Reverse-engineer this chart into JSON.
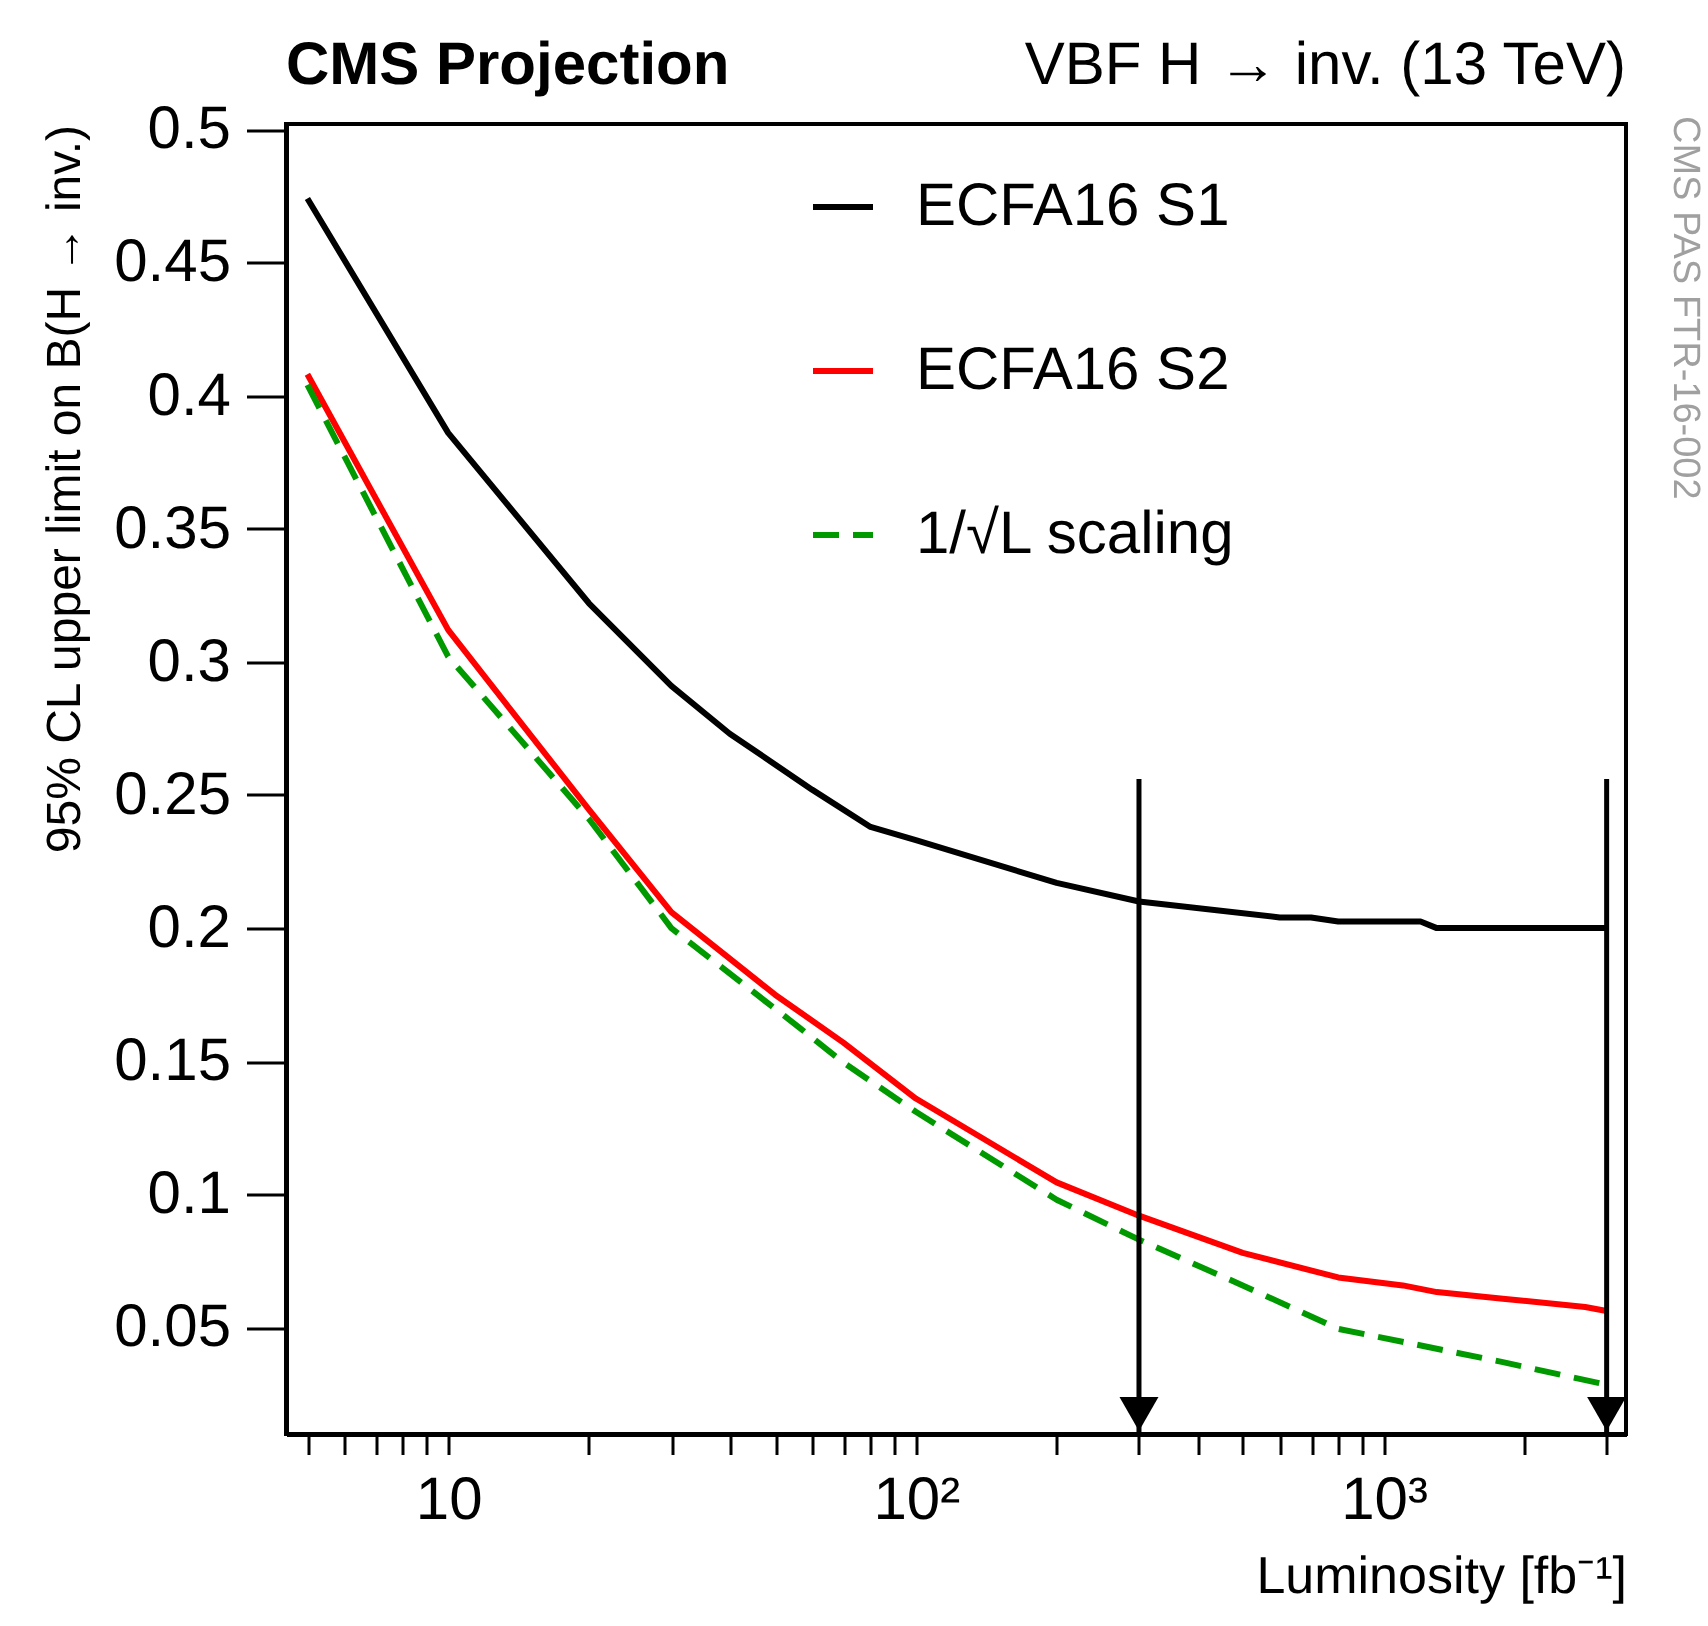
{
  "chart_data": {
    "type": "line",
    "title": "CMS Projection",
    "xlabel": "Luminosity [fb⁻¹]",
    "ylabel": "95% CL upper limit on B(H → inv.)",
    "annotations": [
      "VBF H → inv. (13 TeV)",
      "CMS PAS FTR-16-002"
    ],
    "log": "x",
    "grid": false,
    "legend": "top right",
    "xlim": [
      4.5,
      3300
    ],
    "ylim": [
      0.01,
      0.502
    ],
    "xticks": [
      {
        "value": 5,
        "label": null
      },
      {
        "value": 6,
        "label": null
      },
      {
        "value": 7,
        "label": null
      },
      {
        "value": 8,
        "label": null
      },
      {
        "value": 9,
        "label": null
      },
      {
        "value": 10,
        "label": "10"
      },
      {
        "value": 20,
        "label": null
      },
      {
        "value": 30,
        "label": null
      },
      {
        "value": 40,
        "label": null
      },
      {
        "value": 50,
        "label": null
      },
      {
        "value": 60,
        "label": null
      },
      {
        "value": 70,
        "label": null
      },
      {
        "value": 80,
        "label": null
      },
      {
        "value": 90,
        "label": null
      },
      {
        "value": 100,
        "label": "10²"
      },
      {
        "value": 200,
        "label": null
      },
      {
        "value": 300,
        "label": null
      },
      {
        "value": 400,
        "label": null
      },
      {
        "value": 500,
        "label": null
      },
      {
        "value": 600,
        "label": null
      },
      {
        "value": 700,
        "label": null
      },
      {
        "value": 800,
        "label": null
      },
      {
        "value": 900,
        "label": null
      },
      {
        "value": 1000,
        "label": "10³"
      },
      {
        "value": 2000,
        "label": null
      },
      {
        "value": 3000,
        "label": null
      }
    ],
    "yticks": [
      0.05,
      0.1,
      0.15,
      0.2,
      0.25,
      0.3,
      0.35,
      0.4,
      0.45,
      0.5
    ],
    "ref_lines": [
      {
        "axis": "x",
        "value": 300,
        "color": "#000000"
      },
      {
        "axis": "x",
        "value": 3000,
        "color": "#000000"
      }
    ],
    "series": [
      {
        "name": "ECFA16 S1",
        "color": "#000000",
        "line_style": "solid",
        "x": [
          5,
          10,
          20,
          30,
          40,
          60,
          80,
          100,
          200,
          300,
          600,
          700,
          800,
          1200,
          1300,
          3000
        ],
        "values": [
          0.474,
          0.386,
          0.322,
          0.291,
          0.273,
          0.252,
          0.238,
          0.233,
          0.217,
          0.21,
          0.204,
          0.204,
          0.2025,
          0.2025,
          0.2,
          0.2
        ]
      },
      {
        "name": "ECFA16 S2",
        "color": "#ff0000",
        "line_style": "solid",
        "x": [
          5,
          10,
          20,
          30,
          50,
          70,
          100,
          200,
          300,
          500,
          800,
          1100,
          1300,
          1800,
          2700,
          3000
        ],
        "values": [
          0.408,
          0.312,
          0.2445,
          0.206,
          0.175,
          0.157,
          0.136,
          0.1045,
          0.092,
          0.078,
          0.0688,
          0.0658,
          0.0633,
          0.0608,
          0.0577,
          0.0562
        ]
      },
      {
        "name": "1/√L scaling",
        "color": "#009900",
        "line_style": "dashed",
        "x": [
          5,
          10,
          20,
          30,
          56,
          70,
          100,
          200,
          300,
          500,
          800,
          1800,
          3000
        ],
        "values": [
          0.404,
          0.302,
          0.241,
          0.2,
          0.163,
          0.1495,
          0.131,
          0.098,
          0.083,
          0.0658,
          0.0495,
          0.037,
          0.0285
        ]
      }
    ]
  }
}
